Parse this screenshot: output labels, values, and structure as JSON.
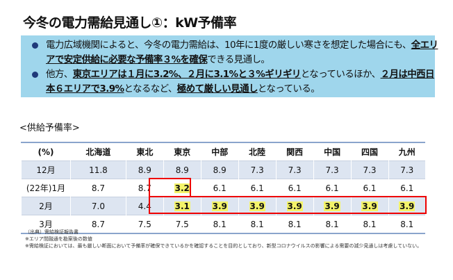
{
  "title": "今冬の電力需給見通し①：kW予備率",
  "summary": {
    "bullet1": {
      "t1": "電力広域機関によると、今冬の電力需給は、10年に1度の厳しい寒さを想定した場合にも、",
      "b1": "全エリアで安定供給に必要な予備率３%を確保",
      "t2": "できる見通し。"
    },
    "bullet2": {
      "t1": "他方、",
      "b1": "東京エリアは１月に3.2%、２月に3.1%と３%ギリギリ",
      "t2": "となっているほか、",
      "b2": "２月は中西日本６エリアで3.9%",
      "t3": "となるなど、",
      "b3": "極めて厳しい見通し",
      "t4": "となっている。"
    }
  },
  "table": {
    "caption": "<供給予備率>",
    "headers": [
      "(%)",
      "北海道",
      "東北",
      "東京",
      "中部",
      "北陸",
      "関西",
      "中国",
      "四国",
      "九州"
    ],
    "rows": [
      {
        "label": "12月",
        "values": [
          "11.8",
          "8.9",
          "8.9",
          "8.9",
          "7.3",
          "7.3",
          "7.3",
          "7.3",
          "7.3"
        ]
      },
      {
        "label": "(22年)1月",
        "values": [
          "8.7",
          "8.7",
          "3.2",
          "6.1",
          "6.1",
          "6.1",
          "6.1",
          "6.1",
          "6.1"
        ]
      },
      {
        "label": "2月",
        "values": [
          "7.0",
          "4.4",
          "3.1",
          "3.9",
          "3.9",
          "3.9",
          "3.9",
          "3.9",
          "3.9"
        ]
      },
      {
        "label": "3月",
        "values": [
          "8.7",
          "7.5",
          "7.5",
          "8.1",
          "8.1",
          "8.1",
          "8.1",
          "8.1",
          "8.1"
        ]
      }
    ]
  },
  "notes": [
    "（出典）需給検証報告書",
    "※エリア間融通を勘案後の数値",
    "※需給検証においては、最も厳しい断面において予備率が確保できているかを確認することを目的としており、新型コロナウイルスの影響による需要の減少見通しは考慮していない。"
  ],
  "colors": {
    "box": "#9fd6ec",
    "highlight": "#f4f46a",
    "red": "#e00000"
  }
}
